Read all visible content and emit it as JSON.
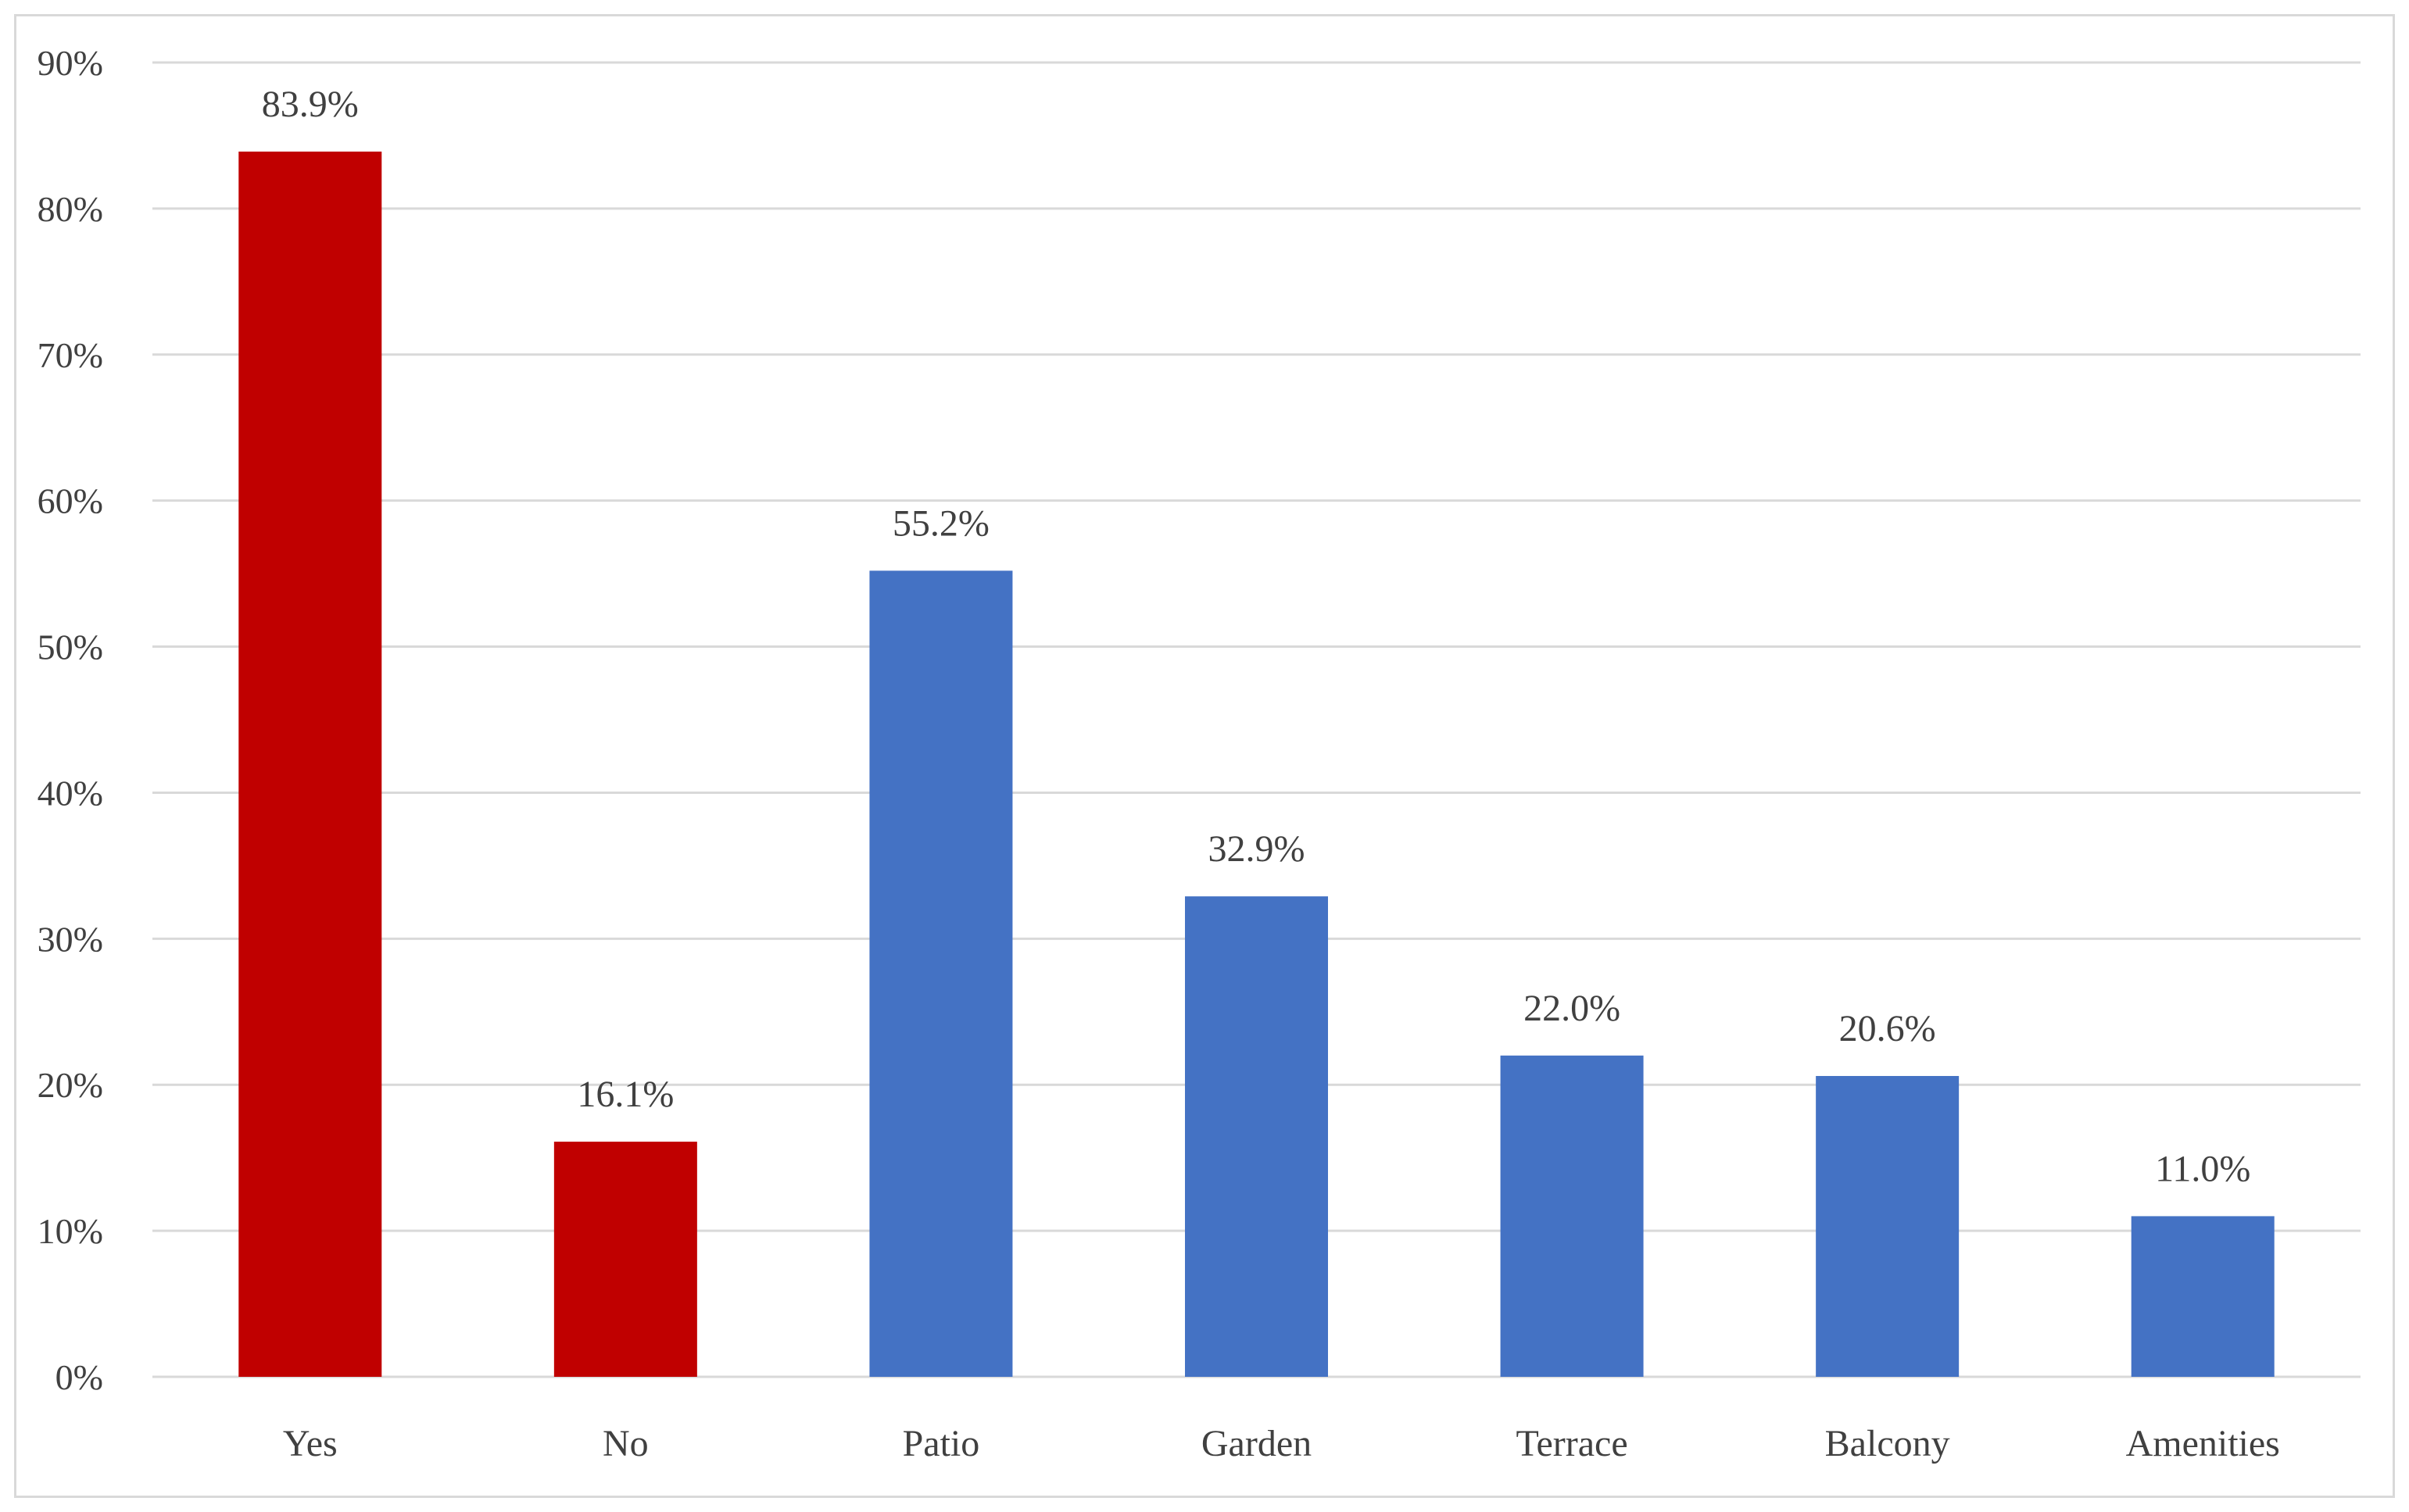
{
  "chart_data": {
    "type": "bar",
    "title": "",
    "xlabel": "",
    "ylabel": "",
    "categories": [
      "Yes",
      "No",
      "Patio",
      "Garden",
      "Terrace",
      "Balcony",
      "Amenities"
    ],
    "values": [
      83.9,
      16.1,
      55.2,
      32.9,
      22.0,
      20.6,
      11.0
    ],
    "data_labels": [
      "83.9%",
      "16.1%",
      "55.2%",
      "32.9%",
      "22.0%",
      "20.6%",
      "11.0%"
    ],
    "bar_colors": [
      "#c00000",
      "#c00000",
      "#4472c4",
      "#4472c4",
      "#4472c4",
      "#4472c4",
      "#4472c4"
    ],
    "ylim": [
      0,
      90
    ],
    "yticks": [
      0,
      10,
      20,
      30,
      40,
      50,
      60,
      70,
      80,
      90
    ],
    "ytick_labels": [
      "0%",
      "10%",
      "20%",
      "30%",
      "40%",
      "50%",
      "60%",
      "70%",
      "80%",
      "90%"
    ],
    "grid": true,
    "legend": "none"
  }
}
